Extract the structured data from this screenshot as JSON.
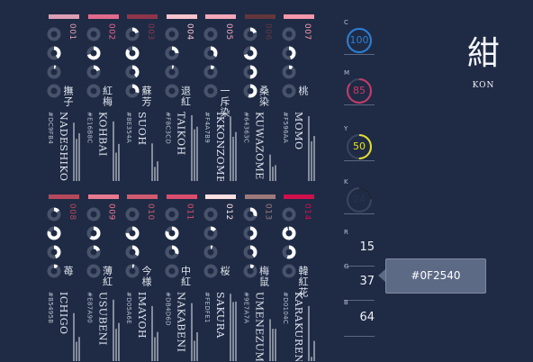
{
  "current_color": {
    "kanji": "紺",
    "romaji": "KON",
    "hex": "#0F2540"
  },
  "cmyk": [
    {
      "label": "C",
      "value": 100,
      "color": "#2a7fd6"
    },
    {
      "label": "M",
      "value": 85,
      "color": "#c73a6a"
    },
    {
      "label": "Y",
      "value": 50,
      "color": "#e6e02a"
    },
    {
      "label": "K",
      "value": 24,
      "color": "#1c2636"
    }
  ],
  "rgb": [
    {
      "label": "R",
      "value": 15
    },
    {
      "label": "G",
      "value": 37
    },
    {
      "label": "B",
      "value": 64
    }
  ],
  "colors": [
    {
      "num": "001",
      "kanji": "撫子",
      "romaji": "NADESHIKO",
      "hex": "#DC9FB4",
      "cmyk": [
        0,
        40,
        5,
        0
      ],
      "rgb": [
        220,
        159,
        180
      ]
    },
    {
      "num": "002",
      "kanji": "紅梅",
      "romaji": "KOHBAI",
      "hex": "#E16B8C",
      "cmyk": [
        0,
        70,
        20,
        0
      ],
      "rgb": [
        225,
        107,
        140
      ]
    },
    {
      "num": "003",
      "kanji": "蘇芳",
      "romaji": "SUOH",
      "hex": "#8E354A",
      "cmyk": [
        20,
        85,
        40,
        30
      ],
      "rgb": [
        142,
        53,
        74
      ]
    },
    {
      "num": "004",
      "kanji": "退紅",
      "romaji": "TAIKOH",
      "hex": "#F8C3CD",
      "cmyk": [
        0,
        25,
        5,
        0
      ],
      "rgb": [
        248,
        195,
        205
      ]
    },
    {
      "num": "005",
      "kanji": "一斥染",
      "romaji": "IKKONZOME",
      "hex": "#F4A7B9",
      "cmyk": [
        0,
        35,
        10,
        0
      ],
      "rgb": [
        244,
        167,
        185
      ]
    },
    {
      "num": "006",
      "kanji": "桑染",
      "romaji": "KUWAZOME",
      "hex": "#64363C",
      "cmyk": [
        20,
        70,
        50,
        55
      ],
      "rgb": [
        100,
        54,
        60
      ]
    },
    {
      "num": "007",
      "kanji": "桃",
      "romaji": "MOMO",
      "hex": "#F596AA",
      "cmyk": [
        0,
        45,
        10,
        0
      ],
      "rgb": [
        245,
        150,
        170
      ]
    },
    {
      "num": "008",
      "kanji": "苺",
      "romaji": "ICHIGO",
      "hex": "#B5495B",
      "cmyk": [
        15,
        80,
        45,
        10
      ],
      "rgb": [
        181,
        73,
        91
      ]
    },
    {
      "num": "009",
      "kanji": "薄紅",
      "romaji": "USUBENI",
      "hex": "#E87A90",
      "cmyk": [
        0,
        60,
        20,
        0
      ],
      "rgb": [
        232,
        122,
        144
      ]
    },
    {
      "num": "010",
      "kanji": "今様",
      "romaji": "IMAYOH",
      "hex": "#D05A6E",
      "cmyk": [
        0,
        75,
        35,
        5
      ],
      "rgb": [
        208,
        90,
        110
      ]
    },
    {
      "num": "011",
      "kanji": "中紅",
      "romaji": "NAKABENI",
      "hex": "#DB4D6D",
      "cmyk": [
        0,
        80,
        30,
        0
      ],
      "rgb": [
        219,
        77,
        109
      ]
    },
    {
      "num": "012",
      "kanji": "桜",
      "romaji": "SAKURA",
      "hex": "#FEDFE1",
      "cmyk": [
        0,
        15,
        5,
        0
      ],
      "rgb": [
        254,
        223,
        225
      ]
    },
    {
      "num": "013",
      "kanji": "梅鼠",
      "romaji": "UMENEZUMI",
      "hex": "#9E7A7A",
      "cmyk": [
        30,
        50,
        40,
        10
      ],
      "rgb": [
        158,
        122,
        122
      ]
    },
    {
      "num": "014",
      "kanji": "韓紅花",
      "romaji": "KARAKURENAI",
      "hex": "#D0104C",
      "cmyk": [
        0,
        95,
        55,
        0
      ],
      "rgb": [
        208,
        16,
        76
      ]
    }
  ]
}
